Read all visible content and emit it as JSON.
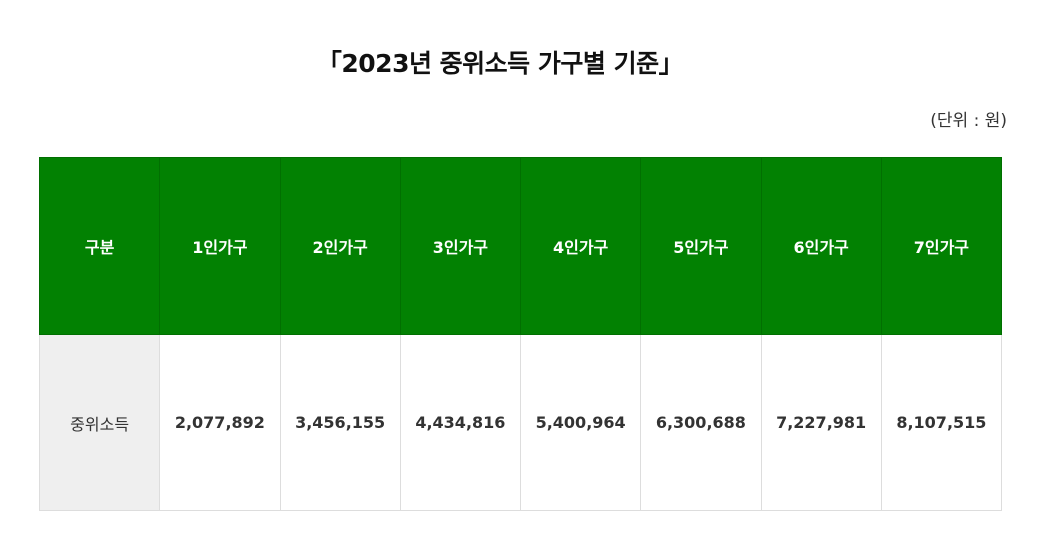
{
  "title": "「2023년 중위소득 가구별 기준」",
  "unit": "(단위 : 원)",
  "table": {
    "headers": [
      "구분",
      "1인가구",
      "2인가구",
      "3인가구",
      "4인가구",
      "5인가구",
      "6인가구",
      "7인가구"
    ],
    "row": {
      "label": "중위소득",
      "values": [
        "2,077,892",
        "3,456,155",
        "4,434,816",
        "5,400,964",
        "6,300,688",
        "7,227,981",
        "8,107,515"
      ]
    }
  },
  "colors": {
    "header_bg": "#028102",
    "header_text": "#ffffff",
    "row_head_bg": "#efefef",
    "border": "#dddddd"
  }
}
